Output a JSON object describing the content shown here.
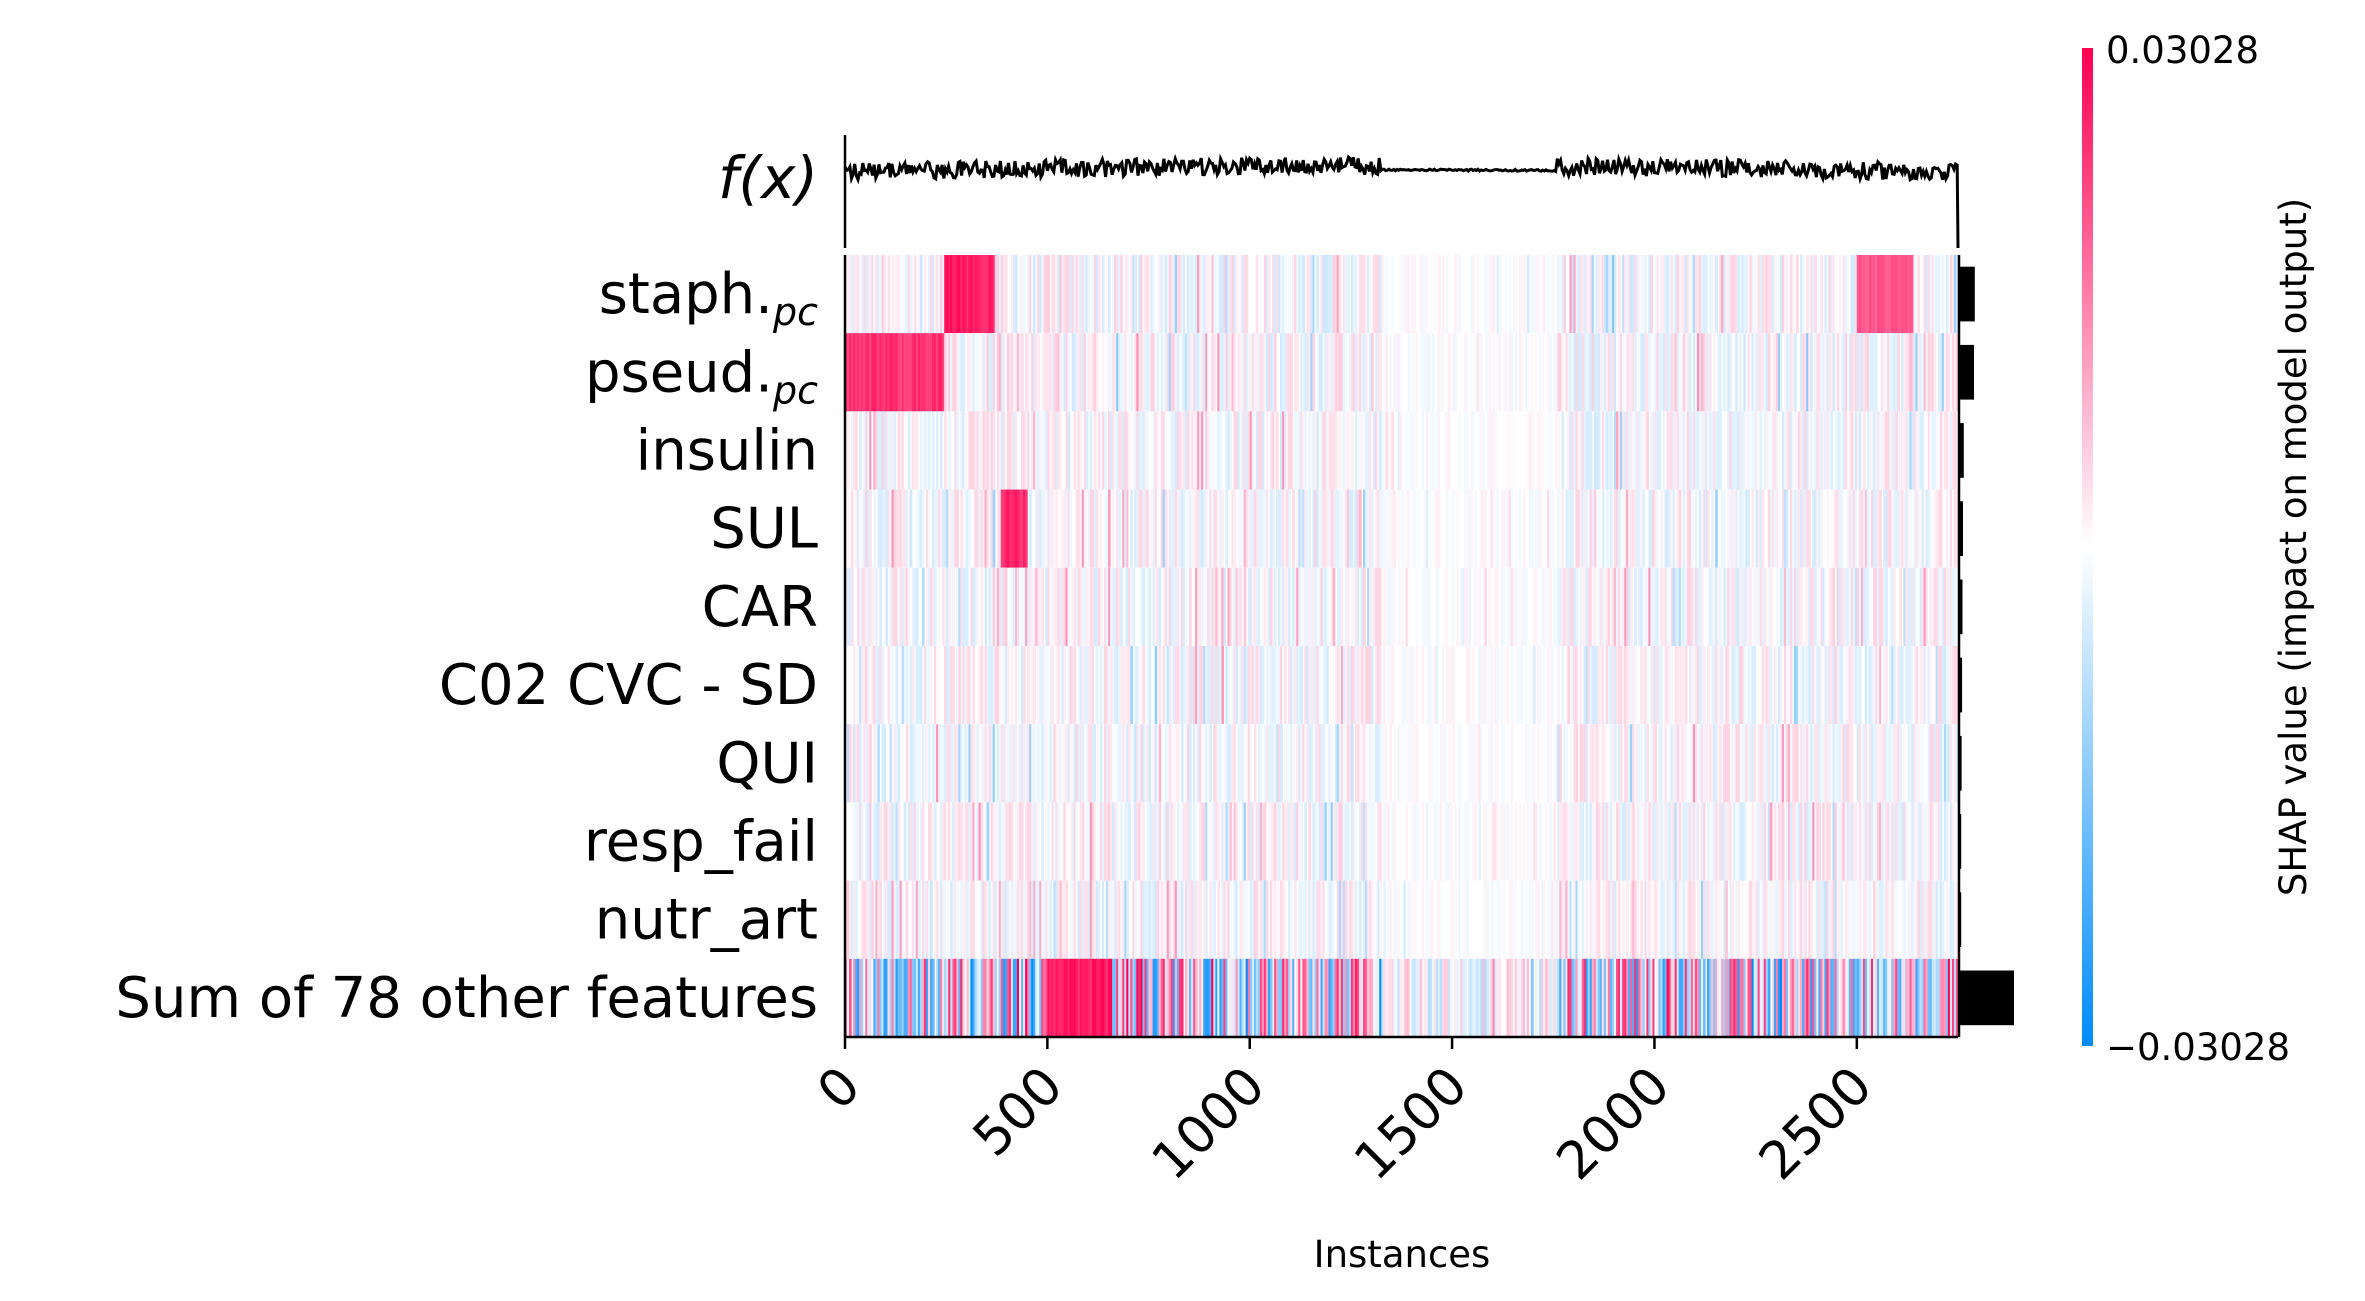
{
  "chart_data": {
    "type": "heatmap",
    "title": "",
    "xlabel": "Instances",
    "ylabel": "",
    "xlim": [
      0,
      2750
    ],
    "xticks": [
      0,
      500,
      1000,
      1500,
      2000,
      2500
    ],
    "n_instances": 2750,
    "top_label": "f(x)",
    "features": [
      {
        "name": "staph.",
        "subscript": "pc",
        "importance": 0.0036
      },
      {
        "name": "pseud.",
        "subscript": "pc",
        "importance": 0.0034
      },
      {
        "name": "insulin",
        "importance": 0.0011
      },
      {
        "name": "SUL",
        "importance": 0.0009
      },
      {
        "name": "CAR",
        "importance": 0.0008
      },
      {
        "name": "C02 CVC - SD",
        "importance": 0.0007
      },
      {
        "name": "QUI",
        "importance": 0.0006
      },
      {
        "name": "resp_fail",
        "importance": 0.0005
      },
      {
        "name": "nutr_art",
        "importance": 0.0005
      },
      {
        "name": "Sum of 78 other features",
        "importance": 0.0125
      }
    ],
    "hot_bands": [
      {
        "feature": 0,
        "from": 245,
        "to": 370,
        "value": 0.03
      },
      {
        "feature": 0,
        "from": 2500,
        "to": 2640,
        "value": 0.022
      },
      {
        "feature": 1,
        "from": 0,
        "to": 245,
        "value": 0.027
      },
      {
        "feature": 3,
        "from": 385,
        "to": 450,
        "value": 0.028
      },
      {
        "feature": 9,
        "from": 500,
        "to": 660,
        "value": 0.03
      }
    ],
    "colorbar": {
      "label": "SHAP value (impact on model output)",
      "min": -0.03028,
      "max": 0.03028,
      "min_label": "−0.03028",
      "max_label": "0.03028",
      "colors": [
        "#008bfb",
        "#ffffff",
        "#ff0052"
      ]
    },
    "grid": false,
    "legend": "none"
  }
}
